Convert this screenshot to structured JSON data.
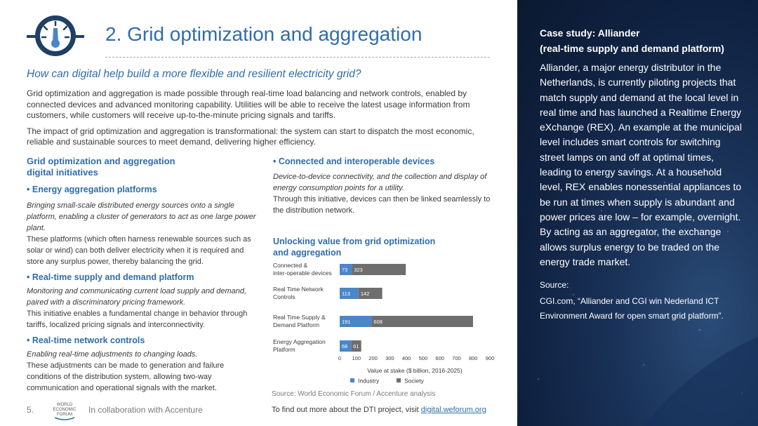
{
  "page": {
    "title": "2. Grid optimization and aggregation",
    "subtitle": "How can digital help build a more flexible and resilient electricity grid?",
    "intro": [
      "Grid optimization and aggregation is made possible through real-time load balancing and network controls, enabled by connected devices and advanced monitoring capability. Utilities will be able to receive the latest usage information from customers, while customers will receive up-to-the-minute pricing signals and tariffs.",
      "The impact of grid optimization and aggregation is transformational: the system can start to dispatch the most economic, reliable and sustainable sources to meet demand, delivering higher efficiency."
    ]
  },
  "initiatives": {
    "heading": "Grid optimization and aggregation digital initiatives",
    "bullet": "•",
    "items": [
      {
        "title": "Energy aggregation platforms",
        "italic": "Bringing small-scale distributed energy sources onto a single platform, enabling a cluster of generators to act as one large power plant.",
        "body": "These platforms (which often harness renewable sources such as solar or wind) can both deliver electricity when it is required and store any surplus power, thereby balancing the grid."
      },
      {
        "title": "Real-time supply and demand platform",
        "italic": "Monitoring and communicating current load supply and demand, paired with a discriminatory pricing framework.",
        "body": "This initiative enables a fundamental change in behavior through tariffs, localized pricing signals and interconnectivity."
      },
      {
        "title": "Real-time network controls",
        "italic": "Enabling real-time adjustments to changing loads.",
        "body": "These adjustments can be made to generation and failure conditions of the distribution system, allowing two-way communication and operational signals with the market."
      },
      {
        "title": "Connected and interoperable devices",
        "italic": "Device-to-device connectivity, and the collection and display of energy consumption points for a utility.",
        "body": "Through this initiative, devices can then be linked seamlessly to the distribution network."
      }
    ]
  },
  "chart_data": {
    "type": "bar",
    "stacked": true,
    "orientation": "horizontal",
    "title": "Unlocking value from grid optimization and aggregation",
    "categories": [
      "Connected & inter-operable devices",
      "Real Time Network Controls",
      "Real Time Supply & Demand Platform",
      "Energy Aggregation Platform"
    ],
    "category_lines": [
      [
        "Connected &",
        "inter-operable devices"
      ],
      [
        "Real Time Network",
        "Controls"
      ],
      [
        "Real Time Supply &",
        "Demand Platform"
      ],
      [
        "Energy Aggregation",
        "Platform"
      ]
    ],
    "series": [
      {
        "name": "Industry",
        "values": [
          73,
          113,
          191,
          68
        ],
        "color": "#4a86c8"
      },
      {
        "name": "Society",
        "values": [
          323,
          142,
          608,
          61
        ],
        "color": "#6e6e6e"
      }
    ],
    "xlabel": "Value at stake ($ billion, 2016-2025)",
    "xlim": [
      0,
      900
    ],
    "xticks": [
      0,
      100,
      200,
      300,
      400,
      500,
      600,
      700,
      800,
      900
    ],
    "legend_position": "bottom"
  },
  "source": "Source: World Economic Forum / Accenture analysis",
  "footer": {
    "page_number": "5.",
    "logo_lines": [
      "WORLD",
      "ECONOMIC",
      "FORUM"
    ],
    "collab": "In collaboration with Accenture",
    "more_prefix": "To find out more about the DTI project, visit ",
    "more_link": "digital.weforum.org"
  },
  "case_study": {
    "title": "Case study: Alliander",
    "subtitle": "(real-time supply and demand platform)",
    "body": "Alliander, a major energy distributor in the Netherlands, is currently piloting projects that match supply and demand at the local level in real time and has launched a Realtime Energy eXchange (REX). An example at the municipal level includes smart controls for switching street lamps on and off at optimal times, leading to energy savings. At a household level, REX enables nonessential appliances to be run at times when supply is abundant and power prices are low – for example, overnight. By acting as an aggregator, the exchange allows surplus energy to be traded on the energy trade market.",
    "source_label": "Source:",
    "source": "CGI.com, “Alliander and CGI win Nederland ICT Environment Award for open smart grid platform”."
  },
  "colors": {
    "accent_blue": "#2f6dab",
    "industry": "#4a86c8",
    "society": "#6e6e6e",
    "panel_bg": "#0f2140"
  },
  "icons": [
    "gauge-icon",
    "wef-logo"
  ]
}
